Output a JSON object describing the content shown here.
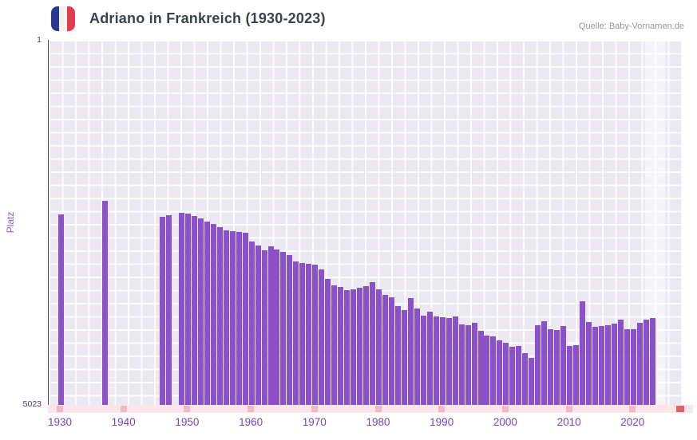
{
  "header": {
    "title": "Adriano in Frankreich (1930-2023)",
    "source": "Quelle: Baby-Vornamen.de",
    "flag_icon": {
      "name": "france-flag-icon",
      "colors": [
        "#2a3890",
        "#f2f2f2",
        "#e23b4e"
      ]
    }
  },
  "axes": {
    "y_label": "Platz",
    "y_top_tick": "1",
    "y_bottom_tick": "5023",
    "x_ticks": [
      "1930",
      "1940",
      "1950",
      "1960",
      "1970",
      "1980",
      "1990",
      "2000",
      "2010",
      "2020"
    ]
  },
  "colors": {
    "bar": "#8b51c9",
    "plot_background": "#ebe8f2",
    "grid_line": "#ffffff",
    "x_tick_label": "#7146c1",
    "y_axis_label": "#8a57ce",
    "strip_background": "#fae6ea",
    "strip_decade_mark": "#f0b9c6",
    "strip_current_mark": "#e2606c"
  },
  "chart_data": {
    "type": "bar",
    "title": "Adriano in Frankreich (1930-2023)",
    "xlabel": "",
    "ylabel": "Platz",
    "y_axis": {
      "min": 1,
      "max": 5023,
      "inverted": true,
      "note": "Rang 1 oben, 5023 unten; Balken wachsen von unten (schlechter Rang) nach oben (besser)"
    },
    "x_range": [
      1930,
      2023
    ],
    "grid": true,
    "legend": false,
    "x": [
      1930,
      1937,
      1946,
      1947,
      1949,
      1950,
      1951,
      1952,
      1953,
      1954,
      1955,
      1956,
      1957,
      1958,
      1959,
      1960,
      1961,
      1962,
      1963,
      1964,
      1965,
      1966,
      1967,
      1968,
      1969,
      1970,
      1971,
      1972,
      1973,
      1974,
      1975,
      1976,
      1977,
      1978,
      1979,
      1980,
      1981,
      1982,
      1983,
      1984,
      1985,
      1986,
      1987,
      1988,
      1989,
      1990,
      1991,
      1992,
      1993,
      1994,
      1995,
      1996,
      1997,
      1998,
      1999,
      2000,
      2001,
      2002,
      2003,
      2004,
      2005,
      2006,
      2007,
      2008,
      2009,
      2010,
      2011,
      2012,
      2013,
      2014,
      2015,
      2016,
      2017,
      2018,
      2019,
      2020,
      2021,
      2022,
      2023
    ],
    "values": [
      2403,
      2217,
      2436,
      2414,
      2381,
      2392,
      2425,
      2457,
      2501,
      2534,
      2578,
      2621,
      2632,
      2643,
      2654,
      2774,
      2829,
      2894,
      2840,
      2883,
      2916,
      2960,
      3047,
      3069,
      3080,
      3091,
      3156,
      3287,
      3375,
      3396,
      3440,
      3429,
      3407,
      3385,
      3331,
      3429,
      3506,
      3538,
      3658,
      3713,
      3549,
      3691,
      3789,
      3735,
      3800,
      3811,
      3822,
      3800,
      3920,
      3931,
      3898,
      4008,
      4073,
      4084,
      4139,
      4172,
      4226,
      4215,
      4313,
      4379,
      3931,
      3866,
      3986,
      3997,
      3942,
      4215,
      4204,
      3593,
      3887,
      3953,
      3942,
      3931,
      3909,
      3844,
      3986,
      3986,
      3898,
      3844,
      3822
    ]
  }
}
